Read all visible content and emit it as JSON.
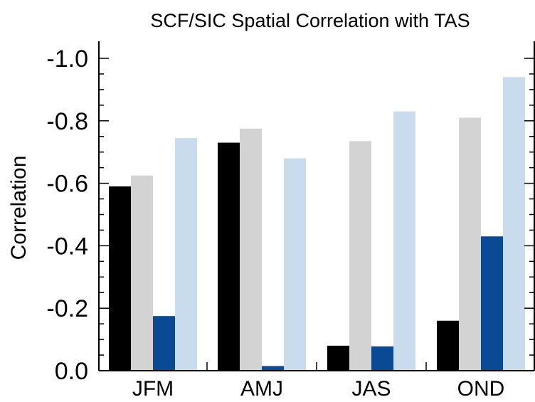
{
  "chart_data": {
    "type": "bar",
    "title": "SCF/SIC Spatial Correlation with TAS",
    "xlabel": "",
    "ylabel": "Correlation",
    "categories": [
      "JFM",
      "AMJ",
      "JAS",
      "OND"
    ],
    "series": [
      {
        "values": [
          -0.59,
          -0.73,
          -0.08,
          -0.16
        ],
        "color": "#000000"
      },
      {
        "values": [
          -0.625,
          -0.775,
          -0.735,
          -0.81
        ],
        "color": "#d3d3d3"
      },
      {
        "values": [
          -0.175,
          -0.015,
          -0.078,
          -0.43
        ],
        "color": "#0a4a94"
      },
      {
        "values": [
          -0.745,
          -0.68,
          -0.83,
          -0.94
        ],
        "color": "#c8dcee"
      }
    ],
    "ylim": [
      0.0,
      -1.0
    ],
    "y_axis_inverted": true,
    "yticks": [
      "0.0",
      "-0.2",
      "-0.4",
      "-0.6",
      "-0.8",
      "-1.0"
    ],
    "grid": false,
    "legend": "none"
  }
}
